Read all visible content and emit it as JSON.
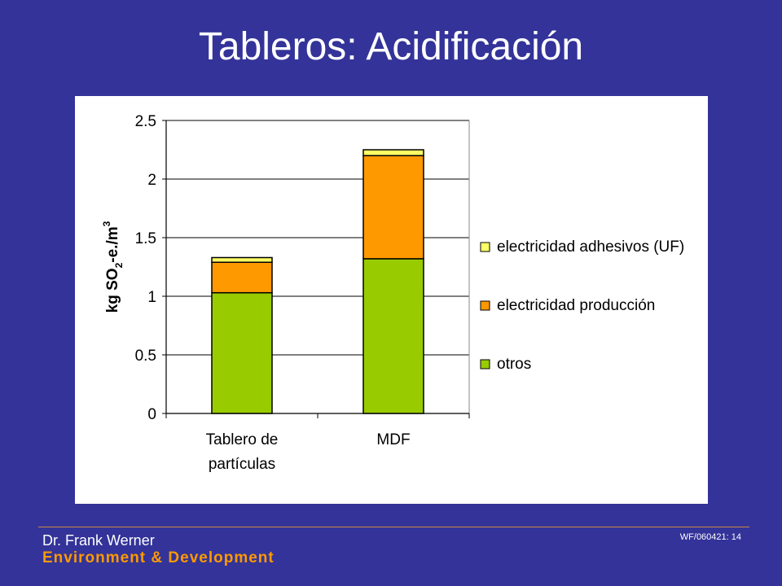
{
  "slide": {
    "title": "Tableros: Acidificación",
    "author": "Dr. Frank Werner",
    "department": "Environment & Development",
    "slide_code": "WF/060421:  14"
  },
  "chart_data": {
    "type": "bar",
    "stacked": true,
    "categories": [
      [
        "Tablero de",
        "partículas"
      ],
      [
        "MDF"
      ]
    ],
    "ylabel": {
      "prefix": "kg SO",
      "sub": "2",
      "mid": "-e./m",
      "sup": "3"
    },
    "ylim": [
      0,
      2.5
    ],
    "yticks": [
      0,
      0.5,
      1,
      1.5,
      2,
      2.5
    ],
    "ytick_labels": [
      "0",
      "0.5",
      "1",
      "1.5",
      "2",
      "2.5"
    ],
    "grid": true,
    "legend_position": "right",
    "series": [
      {
        "name": "otros",
        "values": [
          1.03,
          1.32
        ],
        "color": "#99cc00"
      },
      {
        "name": "electricidad producción",
        "values": [
          0.26,
          0.88
        ],
        "color": "#ff9900"
      },
      {
        "name": "electricidad adhesivos (UF)",
        "values": [
          0.04,
          0.05
        ],
        "color": "#ffff66"
      }
    ],
    "legend_order": [
      2,
      1,
      0
    ]
  }
}
